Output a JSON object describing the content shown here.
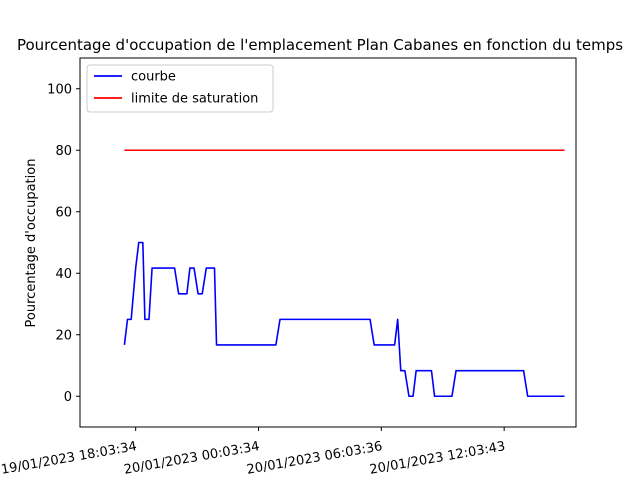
{
  "chart_data": {
    "type": "line",
    "title": "Pourcentage d'occupation de l'emplacement Plan Cabanes en fonction du temps",
    "xlabel": "",
    "ylabel": "Pourcentage d'occupation",
    "ylim": [
      -10,
      110
    ],
    "yticks": [
      0,
      20,
      40,
      60,
      80,
      100
    ],
    "xlim_hours": [
      -2.72,
      21.51
    ],
    "xticks": [
      {
        "hours": 0,
        "label": "19/01/2023 18:03:34"
      },
      {
        "hours": 6,
        "label": "20/01/2023 00:03:34"
      },
      {
        "hours": 12,
        "label": "20/01/2023 06:03:36"
      },
      {
        "hours": 18,
        "label": "20/01/2023 12:03:43"
      }
    ],
    "grid": false,
    "legend_position": "upper-left",
    "series": [
      {
        "name": "courbe",
        "color": "#0000ff",
        "points": [
          [
            -0.55,
            16.7
          ],
          [
            -0.4,
            25
          ],
          [
            -0.22,
            25
          ],
          [
            0.0,
            41.7
          ],
          [
            0.15,
            50
          ],
          [
            0.35,
            50
          ],
          [
            0.45,
            25
          ],
          [
            0.65,
            25
          ],
          [
            0.8,
            41.7
          ],
          [
            1.9,
            41.7
          ],
          [
            2.1,
            33.3
          ],
          [
            2.5,
            33.3
          ],
          [
            2.65,
            41.7
          ],
          [
            2.85,
            41.7
          ],
          [
            3.05,
            33.3
          ],
          [
            3.25,
            33.3
          ],
          [
            3.45,
            41.7
          ],
          [
            3.85,
            41.7
          ],
          [
            3.95,
            16.7
          ],
          [
            6.85,
            16.7
          ],
          [
            7.05,
            25
          ],
          [
            11.45,
            25
          ],
          [
            11.65,
            16.7
          ],
          [
            12.65,
            16.7
          ],
          [
            12.8,
            25
          ],
          [
            12.95,
            8.3
          ],
          [
            13.15,
            8.3
          ],
          [
            13.35,
            0
          ],
          [
            13.55,
            0
          ],
          [
            13.7,
            8.3
          ],
          [
            14.45,
            8.3
          ],
          [
            14.6,
            0
          ],
          [
            15.45,
            0
          ],
          [
            15.65,
            8.3
          ],
          [
            18.95,
            8.3
          ],
          [
            19.15,
            0
          ],
          [
            20.95,
            0
          ]
        ]
      },
      {
        "name": "limite de saturation",
        "color": "#ff0000",
        "points": [
          [
            -0.55,
            80
          ],
          [
            20.95,
            80
          ]
        ]
      }
    ]
  }
}
